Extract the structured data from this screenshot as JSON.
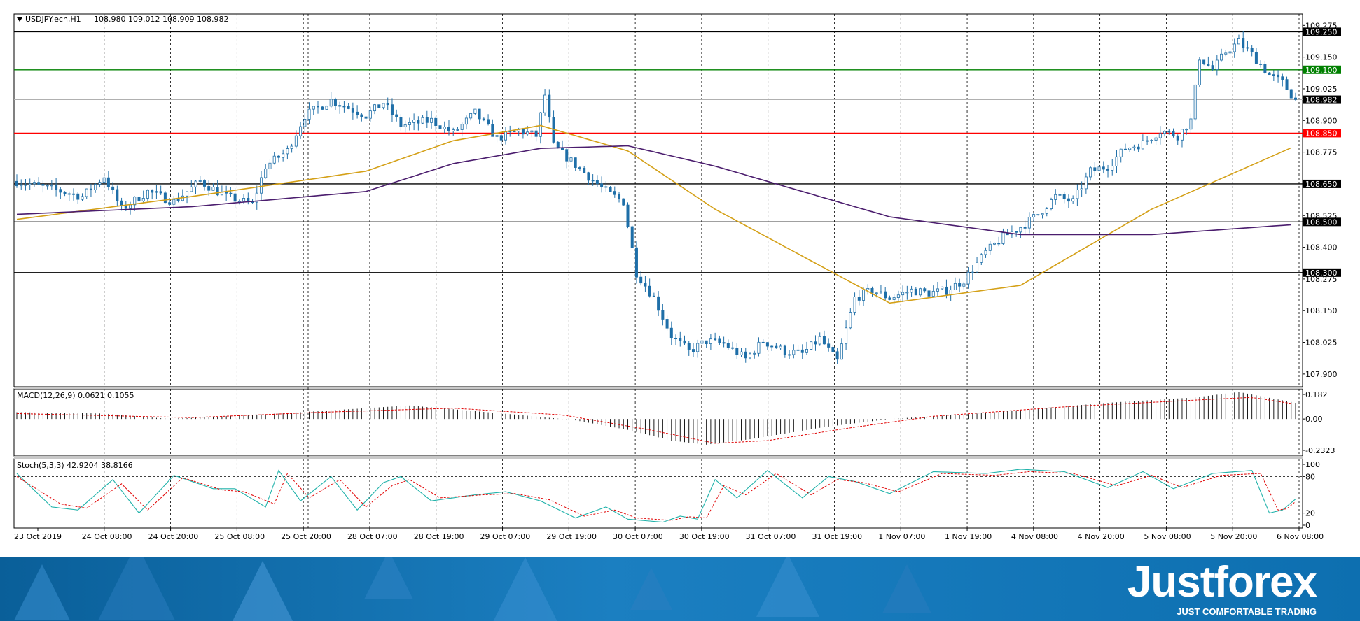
{
  "header": {
    "symbol": "USDJPY.ecn,H1",
    "ohlc": "108.980 109.012 108.909 108.982"
  },
  "chart_data": [
    {
      "type": "candlestick",
      "ylim": [
        107.85,
        109.32
      ],
      "y_ticks": [
        "109.275",
        "109.150",
        "109.025",
        "108.900",
        "108.775",
        "108.525",
        "108.400",
        "108.275",
        "108.150",
        "108.025",
        "107.900"
      ],
      "x_tick_labels": [
        "23 Oct 2019",
        "24 Oct 08:00",
        "24 Oct 20:00",
        "25 Oct 08:00",
        "25 Oct 20:00",
        "28 Oct 07:00",
        "28 Oct 19:00",
        "29 Oct 07:00",
        "29 Oct 19:00",
        "30 Oct 07:00",
        "30 Oct 19:00",
        "31 Oct 07:00",
        "31 Oct 19:00",
        "1 Nov 07:00",
        "1 Nov 19:00",
        "4 Nov 08:00",
        "4 Nov 20:00",
        "5 Nov 08:00",
        "5 Nov 20:00",
        "6 Nov 08:00"
      ],
      "horizontal_levels": [
        {
          "value": 109.25,
          "label": "109.250",
          "color": "#000000"
        },
        {
          "value": 109.1,
          "label": "109.100",
          "color": "#008000"
        },
        {
          "value": 108.85,
          "label": "108.850",
          "color": "#ff0000"
        },
        {
          "value": 108.65,
          "label": "108.650",
          "color": "#000000"
        },
        {
          "value": 108.5,
          "label": "108.500",
          "color": "#000000"
        },
        {
          "value": 108.3,
          "label": "108.300",
          "color": "#000000"
        }
      ],
      "current_price": {
        "value": 108.982,
        "label": "108.982"
      },
      "price_path": [
        [
          0,
          108.66
        ],
        [
          8,
          108.63
        ],
        [
          15,
          108.6
        ],
        [
          20,
          108.68
        ],
        [
          24,
          108.55
        ],
        [
          30,
          108.62
        ],
        [
          36,
          108.58
        ],
        [
          42,
          108.66
        ],
        [
          48,
          108.6
        ],
        [
          54,
          108.57
        ],
        [
          57,
          108.72
        ],
        [
          62,
          108.78
        ],
        [
          66,
          108.92
        ],
        [
          72,
          108.98
        ],
        [
          80,
          108.92
        ],
        [
          84,
          108.97
        ],
        [
          88,
          108.88
        ],
        [
          95,
          108.9
        ],
        [
          100,
          108.85
        ],
        [
          105,
          108.93
        ],
        [
          110,
          108.83
        ],
        [
          115,
          108.86
        ],
        [
          119,
          108.84
        ],
        [
          121,
          109.0
        ],
        [
          123,
          108.8
        ],
        [
          127,
          108.74
        ],
        [
          131,
          108.68
        ],
        [
          135,
          108.62
        ],
        [
          139,
          108.58
        ],
        [
          142,
          108.3
        ],
        [
          146,
          108.2
        ],
        [
          150,
          108.05
        ],
        [
          154,
          107.99
        ],
        [
          158,
          108.03
        ],
        [
          162,
          108.02
        ],
        [
          167,
          107.96
        ],
        [
          171,
          108.03
        ],
        [
          176,
          107.99
        ],
        [
          180,
          107.98
        ],
        [
          184,
          108.04
        ],
        [
          188,
          107.95
        ],
        [
          192,
          108.2
        ],
        [
          196,
          108.23
        ],
        [
          200,
          108.2
        ],
        [
          205,
          108.23
        ],
        [
          209,
          108.22
        ],
        [
          213,
          108.23
        ],
        [
          217,
          108.27
        ],
        [
          222,
          108.38
        ],
        [
          226,
          108.44
        ],
        [
          230,
          108.48
        ],
        [
          234,
          108.53
        ],
        [
          238,
          108.6
        ],
        [
          242,
          108.58
        ],
        [
          246,
          108.7
        ],
        [
          250,
          108.72
        ],
        [
          254,
          108.79
        ],
        [
          258,
          108.81
        ],
        [
          262,
          108.86
        ],
        [
          266,
          108.84
        ],
        [
          269,
          108.9
        ],
        [
          271,
          109.15
        ],
        [
          274,
          109.1
        ],
        [
          277,
          109.17
        ],
        [
          280,
          109.21
        ],
        [
          283,
          109.16
        ],
        [
          287,
          109.08
        ],
        [
          290,
          109.05
        ],
        [
          293,
          108.98
        ]
      ],
      "series": [
        {
          "name": "",
          "color": "#d4a017",
          "x": [
            0,
            40,
            80,
            100,
            120,
            140,
            160,
            200,
            230,
            260,
            293
          ],
          "values": [
            108.51,
            108.6,
            108.7,
            108.82,
            108.88,
            108.78,
            108.55,
            108.18,
            108.25,
            108.55,
            108.8
          ]
        },
        {
          "name": "",
          "color": "#4b1d6e",
          "x": [
            0,
            40,
            80,
            100,
            120,
            140,
            160,
            200,
            230,
            260,
            293
          ],
          "values": [
            108.53,
            108.56,
            108.62,
            108.73,
            108.79,
            108.8,
            108.72,
            108.52,
            108.45,
            108.45,
            108.49
          ]
        }
      ]
    },
    {
      "type": "histogram",
      "label": "MACD(12,26,9) 0.0621 0.1055",
      "y_ticks": [
        "0.182",
        "0.00",
        "-0.2323"
      ],
      "ylim": [
        -0.2323,
        0.182
      ],
      "hist": [
        [
          0,
          0.05
        ],
        [
          20,
          0.04
        ],
        [
          35,
          0.0
        ],
        [
          60,
          0.04
        ],
        [
          90,
          0.1
        ],
        [
          115,
          0.03
        ],
        [
          128,
          -0.01
        ],
        [
          140,
          -0.08
        ],
        [
          150,
          -0.16
        ],
        [
          158,
          -0.19
        ],
        [
          168,
          -0.15
        ],
        [
          185,
          -0.06
        ],
        [
          200,
          0.0
        ],
        [
          220,
          0.04
        ],
        [
          250,
          0.12
        ],
        [
          270,
          0.16
        ],
        [
          280,
          0.2
        ],
        [
          293,
          0.12
        ]
      ],
      "signal": [
        [
          0,
          0.04
        ],
        [
          40,
          0.01
        ],
        [
          70,
          0.05
        ],
        [
          100,
          0.08
        ],
        [
          125,
          0.03
        ],
        [
          145,
          -0.08
        ],
        [
          160,
          -0.18
        ],
        [
          172,
          -0.16
        ],
        [
          190,
          -0.07
        ],
        [
          210,
          0.02
        ],
        [
          240,
          0.09
        ],
        [
          270,
          0.14
        ],
        [
          283,
          0.16
        ],
        [
          293,
          0.11
        ]
      ]
    },
    {
      "type": "line",
      "label": "Stoch(5,3,3) 42.9204 38.8166",
      "y_ticks": [
        "100",
        "80",
        "20",
        "0"
      ],
      "ylim": [
        0,
        100
      ],
      "levels": [
        80,
        20
      ],
      "main": [
        [
          0,
          85
        ],
        [
          8,
          30
        ],
        [
          14,
          25
        ],
        [
          22,
          75
        ],
        [
          28,
          20
        ],
        [
          36,
          82
        ],
        [
          45,
          60
        ],
        [
          50,
          60
        ],
        [
          57,
          30
        ],
        [
          60,
          90
        ],
        [
          65,
          40
        ],
        [
          72,
          80
        ],
        [
          78,
          25
        ],
        [
          84,
          70
        ],
        [
          88,
          80
        ],
        [
          95,
          40
        ],
        [
          105,
          50
        ],
        [
          112,
          55
        ],
        [
          120,
          40
        ],
        [
          128,
          12
        ],
        [
          135,
          30
        ],
        [
          140,
          10
        ],
        [
          148,
          5
        ],
        [
          152,
          15
        ],
        [
          156,
          10
        ],
        [
          160,
          75
        ],
        [
          165,
          45
        ],
        [
          172,
          90
        ],
        [
          180,
          45
        ],
        [
          186,
          80
        ],
        [
          192,
          72
        ],
        [
          200,
          52
        ],
        [
          210,
          88
        ],
        [
          222,
          85
        ],
        [
          230,
          92
        ],
        [
          240,
          88
        ],
        [
          250,
          62
        ],
        [
          258,
          88
        ],
        [
          265,
          60
        ],
        [
          274,
          85
        ],
        [
          283,
          90
        ],
        [
          287,
          20
        ],
        [
          290,
          25
        ],
        [
          293,
          43
        ]
      ],
      "signal": [
        [
          0,
          80
        ],
        [
          10,
          35
        ],
        [
          16,
          28
        ],
        [
          24,
          68
        ],
        [
          30,
          25
        ],
        [
          38,
          78
        ],
        [
          47,
          58
        ],
        [
          52,
          55
        ],
        [
          59,
          35
        ],
        [
          62,
          85
        ],
        [
          67,
          45
        ],
        [
          74,
          75
        ],
        [
          80,
          30
        ],
        [
          86,
          65
        ],
        [
          90,
          75
        ],
        [
          97,
          45
        ],
        [
          107,
          50
        ],
        [
          114,
          52
        ],
        [
          122,
          42
        ],
        [
          130,
          15
        ],
        [
          137,
          25
        ],
        [
          142,
          12
        ],
        [
          150,
          8
        ],
        [
          154,
          14
        ],
        [
          158,
          12
        ],
        [
          162,
          65
        ],
        [
          167,
          50
        ],
        [
          174,
          85
        ],
        [
          182,
          50
        ],
        [
          188,
          75
        ],
        [
          194,
          70
        ],
        [
          202,
          55
        ],
        [
          212,
          85
        ],
        [
          224,
          82
        ],
        [
          232,
          88
        ],
        [
          242,
          85
        ],
        [
          252,
          65
        ],
        [
          260,
          82
        ],
        [
          267,
          62
        ],
        [
          276,
          82
        ],
        [
          285,
          85
        ],
        [
          289,
          25
        ],
        [
          291,
          27
        ],
        [
          293,
          39
        ]
      ]
    }
  ],
  "brand": {
    "name": "Justforex",
    "tagline": "JUST COMFORTABLE TRADING"
  }
}
